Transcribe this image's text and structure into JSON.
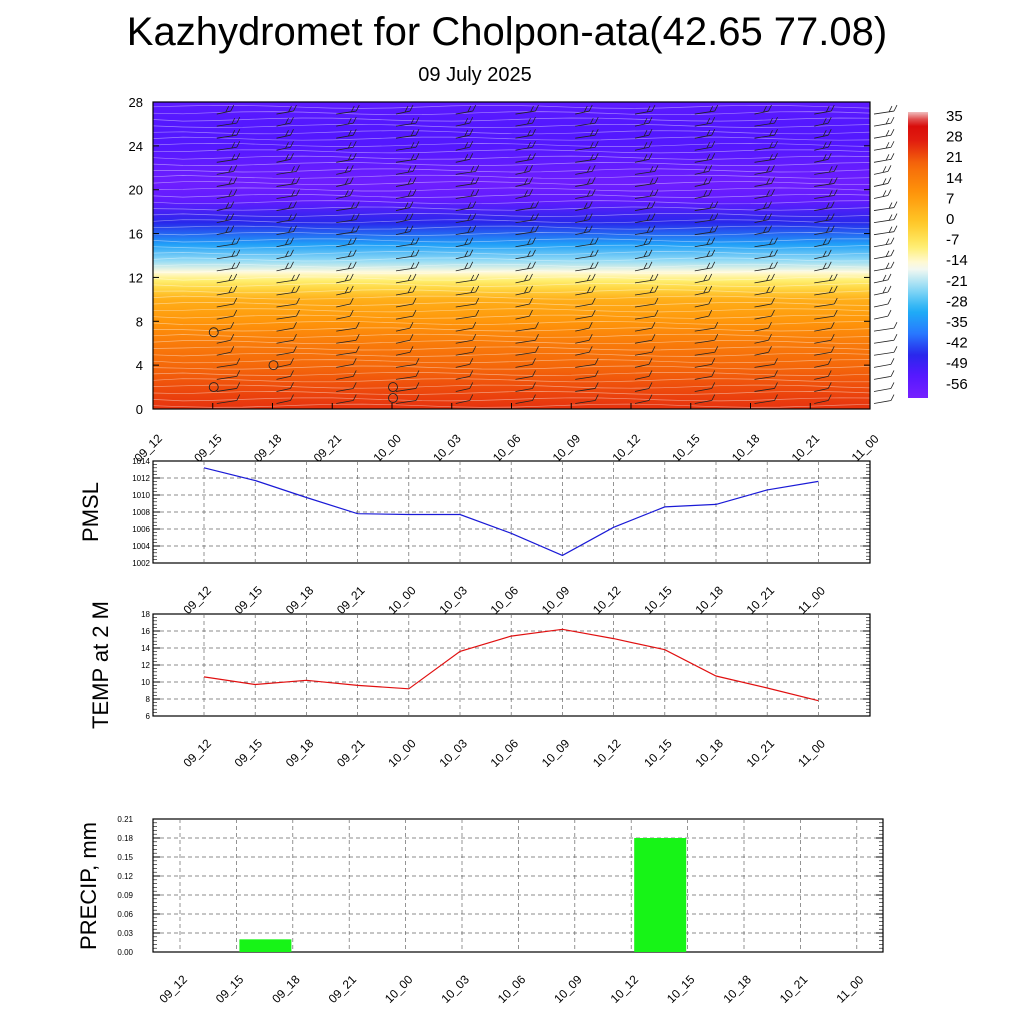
{
  "title": "Kazhydromet for Cholpon-ata(42.65 77.08)",
  "subtitle": "09 July 2025",
  "chart_data": [
    {
      "type": "heatmap",
      "name": "upper-air temperature cross-section",
      "x": [
        "09_12",
        "09_15",
        "09_18",
        "09_21",
        "10_00",
        "10_03",
        "10_06",
        "10_09",
        "10_12",
        "10_15",
        "10_18",
        "10_21",
        "11_00"
      ],
      "ylim": [
        0,
        28
      ],
      "yticks": [
        0,
        4,
        8,
        12,
        16,
        20,
        24,
        28
      ],
      "colorbar_labels": [
        "35",
        "28",
        "21",
        "14",
        "7",
        "0",
        "-7",
        "-14",
        "-21",
        "-28",
        "-35",
        "-42",
        "-49",
        "-56"
      ],
      "colorbar_range": [
        -60,
        38
      ],
      "colors": {
        "warm": "#f47a0a",
        "neutral": "#fffbe6",
        "cold": "#7a1dff"
      },
      "profile": [
        {
          "y": 0,
          "t": 26
        },
        {
          "y": 2,
          "t": 23
        },
        {
          "y": 4,
          "t": 20
        },
        {
          "y": 6,
          "t": 16
        },
        {
          "y": 8,
          "t": 10
        },
        {
          "y": 10,
          "t": 5
        },
        {
          "y": 11,
          "t": -3
        },
        {
          "y": 11.7,
          "t": -8
        },
        {
          "y": 12.5,
          "t": -14
        },
        {
          "y": 13.5,
          "t": -22
        },
        {
          "y": 15,
          "t": -32
        },
        {
          "y": 17,
          "t": -45
        },
        {
          "y": 19,
          "t": -55
        },
        {
          "y": 20.5,
          "t": -58
        },
        {
          "y": 22,
          "t": -56
        },
        {
          "y": 24,
          "t": -52
        },
        {
          "y": 26,
          "t": -52
        },
        {
          "y": 28,
          "t": -54
        }
      ],
      "wind_columns_x": [
        1.1,
        2.1,
        3.1,
        4.1,
        5.1,
        6.1,
        7.1,
        8.1,
        9.1,
        10.1,
        11.1,
        12.1
      ],
      "calm_markers": [
        {
          "x": 1,
          "y": 7
        },
        {
          "x": 1,
          "y": 2
        },
        {
          "x": 2,
          "y": 4
        },
        {
          "x": 4,
          "y": 2
        },
        {
          "x": 4,
          "y": 1
        }
      ]
    },
    {
      "type": "line",
      "ylabel": "PMSL",
      "categories": [
        "09_12",
        "09_15",
        "09_18",
        "09_21",
        "10_00",
        "10_03",
        "10_06",
        "10_09",
        "10_12",
        "10_15",
        "10_18",
        "10_21",
        "11_00"
      ],
      "values": [
        1013.2,
        1011.7,
        1009.7,
        1007.8,
        1007.7,
        1007.7,
        1005.5,
        1002.9,
        1006.2,
        1008.6,
        1008.9,
        1010.6,
        1011.6
      ],
      "ylim": [
        1002,
        1014
      ],
      "yticks": [
        1002,
        1004,
        1006,
        1008,
        1010,
        1012,
        1014
      ],
      "color": "#1a1ad6",
      "grid": true
    },
    {
      "type": "line",
      "ylabel": "TEMP at 2 M",
      "categories": [
        "09_12",
        "09_15",
        "09_18",
        "09_21",
        "10_00",
        "10_03",
        "10_06",
        "10_09",
        "10_12",
        "10_15",
        "10_18",
        "10_21",
        "11_00"
      ],
      "values": [
        10.6,
        9.7,
        10.2,
        9.6,
        9.2,
        13.6,
        15.4,
        16.2,
        15.1,
        13.8,
        10.7,
        9.3,
        7.8
      ],
      "ylim": [
        6,
        18
      ],
      "yticks": [
        6,
        8,
        10,
        12,
        14,
        16,
        18
      ],
      "color": "#e01010",
      "grid": true
    },
    {
      "type": "bar",
      "ylabel": "PRECIP, mm",
      "categories": [
        "09_12",
        "09_15",
        "09_18",
        "09_21",
        "10_00",
        "10_03",
        "10_06",
        "10_09",
        "10_12",
        "10_15",
        "10_18",
        "10_21",
        "11_00"
      ],
      "values": [
        0,
        0.02,
        0,
        0,
        0,
        0,
        0,
        0,
        0.18,
        0,
        0,
        0,
        0
      ],
      "ylim": [
        0,
        0.21
      ],
      "yticks": [
        "0.00",
        "0.03",
        "0.06",
        "0.09",
        "0.12",
        "0.15",
        "0.18",
        "0.21"
      ],
      "color": "#17f417",
      "grid": true
    }
  ]
}
